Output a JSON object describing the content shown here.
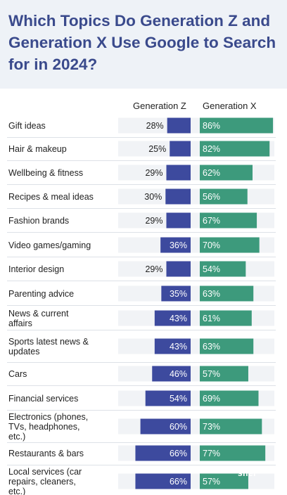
{
  "chart_data": {
    "type": "bar",
    "title": "Which Topics Do Generation Z and Generation X Use Google to Search for in 2024?",
    "categories": [
      "Gift ideas",
      "Hair & makeup",
      "Wellbeing & fitness",
      "Recipes & meal ideas",
      "Fashion brands",
      "Video games/gaming",
      "Interior design",
      "Parenting advice",
      "News & current affairs",
      "Sports latest news & updates",
      "Cars",
      "Financial services",
      "Electronics (phones, TVs, headphones, etc.)",
      "Restaurants & bars",
      "Local services (car repairs, cleaners, etc.)"
    ],
    "series": [
      {
        "name": "Generation Z",
        "values": [
          28,
          25,
          29,
          30,
          29,
          36,
          29,
          35,
          43,
          43,
          46,
          54,
          60,
          66,
          66
        ],
        "color": "#3d4a9e"
      },
      {
        "name": "Generation X",
        "values": [
          86,
          82,
          62,
          56,
          67,
          70,
          54,
          63,
          61,
          63,
          57,
          69,
          73,
          77,
          57
        ],
        "color": "#3d9a7c"
      }
    ],
    "value_suffix": "%",
    "background_color": "#f1f3f6",
    "header_color": "#eef2f7",
    "title_color": "#3a4a8c"
  },
  "watermark": "shel"
}
